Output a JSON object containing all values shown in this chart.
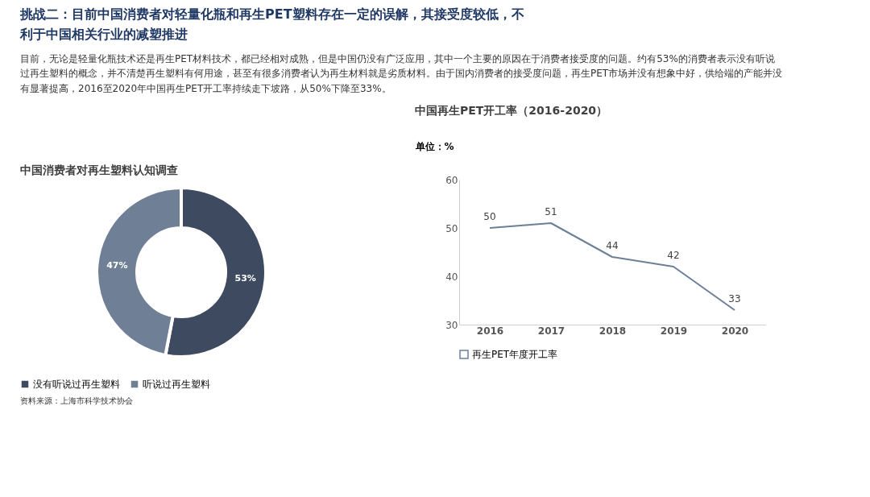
{
  "chart_data": [
    {
      "type": "donut",
      "title": "中国消费者对再生塑料认知调查",
      "annotations": [
        "挑战二：目前中国消费者对轻量化瓶和再生PET塑料存在一定的误解，其接受度较低，不利于中国相关行业的减塑推进",
        "目前，无论是轻量化瓶技术还是再生PET材料技术，都已经相对成熟，但是中国仍没有广泛应用，其中一个主要的原因在于消费者接受度的问题。约有53%的消费者表示没有听说过再生塑料的概念，并不清楚再生塑料有何用途，甚至有很多消费者认为再生材料就是劣质材料。由于国内消费者的接受度问题，再生PET市场并没有想象中好，供给端的产能并没有显著提高，2016至2020年中国再生PET开工率持续走下坡路，从50%下降至33%。"
      ],
      "categories": [
        "没有听说过再生塑料",
        "听说过再生塑料"
      ],
      "values": [
        53,
        47
      ],
      "colors": [
        "#3e4a5f",
        "#6f7f96"
      ],
      "value_labels": [
        "53%",
        "47%"
      ],
      "legend": "bottom"
    },
    {
      "type": "line",
      "title": "中国再生PET开工率（2016-2020）",
      "ylabel": "单位：%",
      "annotations": [
        "资料来源：上海市科学技术协会"
      ],
      "categories": [
        "2016",
        "2017",
        "2018",
        "2019",
        "2020"
      ],
      "series": [
        {
          "name": "再生PET年度开工率",
          "color": "#6b7f99",
          "values": [
            50,
            51,
            44,
            42,
            33
          ]
        }
      ],
      "ylim": [
        30,
        60
      ],
      "yticks": [
        30,
        40,
        50,
        60
      ],
      "data_labels": true,
      "legend": "bottom",
      "marker": "none"
    }
  ]
}
